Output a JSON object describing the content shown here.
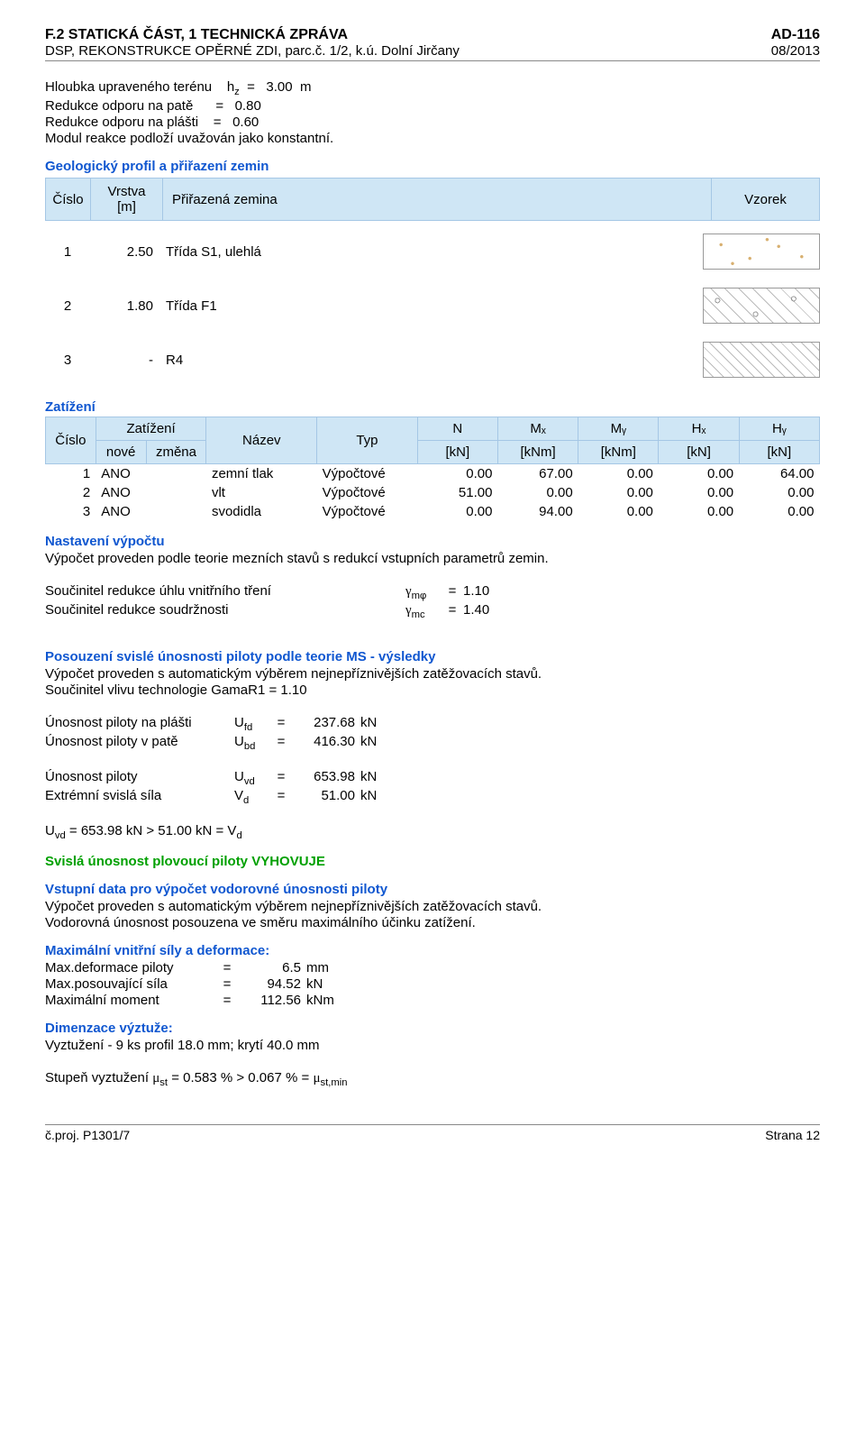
{
  "header": {
    "title_left": "F.2 STATICKÁ ČÁST,  1 TECHNICKÁ ZPRÁVA",
    "title_right": "AD-116",
    "sub_left": "DSP, REKONSTRUKCE OPĚRNÉ ZDI, parc.č. 1/2, k.ú. Dolní Jirčany",
    "sub_right": "08/2013"
  },
  "terrain": {
    "depth_label": "Hloubka upraveného terénu",
    "depth_symbol": "h",
    "depth_sub": "z",
    "depth_eq": "=",
    "depth_value": "3.00",
    "depth_unit": "m",
    "base_red_label": "Redukce odporu na patě",
    "base_red_eq": "=",
    "base_red_value": "0.80",
    "shaft_red_label": "Redukce odporu na plášti",
    "shaft_red_eq": "=",
    "shaft_red_value": "0.60",
    "modulus_note": "Modul reakce podloží uvažován jako konstantní."
  },
  "geology": {
    "heading": "Geologický profil a přiřazení zemin",
    "h_cislo": "Číslo",
    "h_vrstva_top": "Vrstva",
    "h_vrstva_bot": "[m]",
    "h_zemina": "Přiřazená zemina",
    "h_vzorek": "Vzorek",
    "rows": [
      {
        "cislo": "1",
        "vrstva": "2.50",
        "zemina": "Třída S1, ulehlá",
        "swatch": "dots"
      },
      {
        "cislo": "2",
        "vrstva": "1.80",
        "zemina": "Třída F1",
        "swatch": "hatch1"
      },
      {
        "cislo": "3",
        "vrstva": "-",
        "zemina": "R4",
        "swatch": "hatch2"
      }
    ]
  },
  "loads": {
    "heading": "Zatížení",
    "h_cislo": "Číslo",
    "h_zat_top": "Zatížení",
    "h_zat_bot": "nové",
    "h_zmena": "změna",
    "h_nazev": "Název",
    "h_typ": "Typ",
    "h_N_top": "N",
    "h_unit_kN": "[kN]",
    "h_Mx": "Mₓ",
    "h_My": "Mᵧ",
    "h_unit_kNm": "[kNm]",
    "h_Hx": "Hₓ",
    "h_Hy": "Hᵧ",
    "rows": [
      {
        "cislo": "1",
        "zat": "ANO",
        "nazev": "zemní tlak",
        "typ": "Výpočtové",
        "n": "0.00",
        "mx": "67.00",
        "my": "0.00",
        "hx": "0.00",
        "hy": "64.00"
      },
      {
        "cislo": "2",
        "zat": "ANO",
        "nazev": "vlt",
        "typ": "Výpočtové",
        "n": "51.00",
        "mx": "0.00",
        "my": "0.00",
        "hx": "0.00",
        "hy": "0.00"
      },
      {
        "cislo": "3",
        "zat": "ANO",
        "nazev": "svodidla",
        "typ": "Výpočtové",
        "n": "0.00",
        "mx": "94.00",
        "my": "0.00",
        "hx": "0.00",
        "hy": "0.00"
      }
    ]
  },
  "calc_setup": {
    "heading": "Nastavení výpočtu",
    "note": "Výpočet proveden podle teorie mezních stavů s redukcí vstupních parametrů zemin.",
    "phi_label": "Součinitel redukce úhlu vnitřního tření",
    "phi_symbol": "γ",
    "phi_sub": "mφ",
    "phi_eq": "=",
    "phi_value": "1.10",
    "c_label": "Součinitel redukce soudržnosti",
    "c_symbol": "γ",
    "c_sub": "mc",
    "c_eq": "=",
    "c_value": "1.40"
  },
  "vertical": {
    "heading": "Posouzení svislé únosnosti piloty podle teorie MS - výsledky",
    "note1": "Výpočet proveden s automatickým výběrem nejnepříznivějších zatěžovacích stavů.",
    "note2": "Součinitel vlivu technologie GamaR1 = 1.10",
    "ufd_label": "Únosnost piloty na plášti",
    "ufd_sym": "U",
    "ufd_sub": "fd",
    "ufd_eq": "=",
    "ufd_val": "237.68",
    "ufd_unit": "kN",
    "ubd_label": "Únosnost piloty v patě",
    "ubd_sym": "U",
    "ubd_sub": "bd",
    "ubd_eq": "=",
    "ubd_val": "416.30",
    "ubd_unit": "kN",
    "uvd_label": "Únosnost piloty",
    "uvd_sym": "U",
    "uvd_sub": "vd",
    "uvd_eq": "=",
    "uvd_val": "653.98",
    "uvd_unit": "kN",
    "vd_label": "Extrémní svislá síla",
    "vd_sym": "V",
    "vd_sub": "d",
    "vd_eq": "=",
    "vd_val": "51.00",
    "vd_unit": "kN",
    "check_prefix": "U",
    "check_sub1": "vd",
    "check_text": " = 653.98 kN > 51.00 kN = V",
    "check_sub2": "d",
    "result": "Svislá únosnost plovoucí piloty VYHOVUJE"
  },
  "horizontal": {
    "heading": "Vstupní data pro výpočet vodorovné únosnosti piloty",
    "note1": "Výpočet proveden s automatickým výběrem nejnepříznivějších zatěžovacích stavů.",
    "note2": "Vodorovná únosnost posouzena ve směru maximálního účinku zatížení."
  },
  "internal": {
    "heading": "Maximální vnitřní síly a deformace:",
    "def_label": "Max.deformace piloty",
    "def_eq": "=",
    "def_val": "6.5",
    "def_unit": "mm",
    "shear_label": "Max.posouvající síla",
    "shear_eq": "=",
    "shear_val": "94.52",
    "shear_unit": "kN",
    "mom_label": "Maximální moment",
    "mom_eq": "=",
    "mom_val": "112.56",
    "mom_unit": "kNm"
  },
  "reinf": {
    "heading": "Dimenzace výztuže:",
    "line1": "Vyztužení - 9 ks profil 18.0 mm; krytí 40.0 mm",
    "ratio_prefix": "Stupeň vyztužení ",
    "mu": "μ",
    "sub1": "st",
    "ratio_mid": " = 0.583 % > 0.067 % = ",
    "sub2": "st,min"
  },
  "footer": {
    "left": "č.proj. P1301/7",
    "right": "Strana 12"
  }
}
